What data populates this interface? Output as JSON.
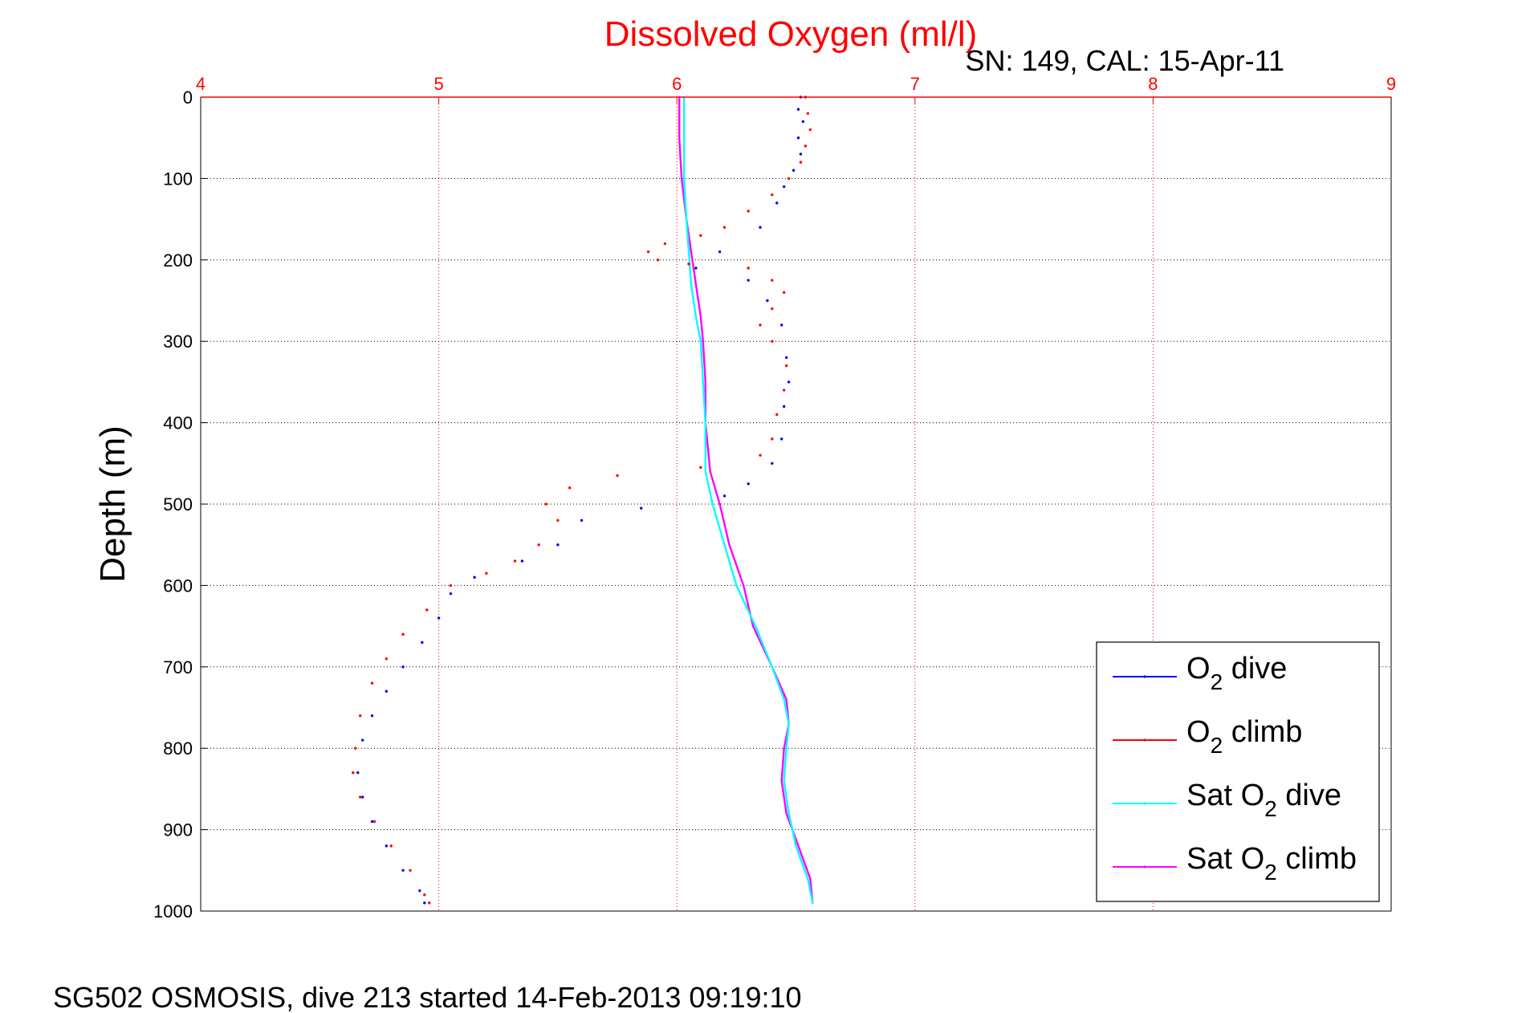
{
  "chart_data": {
    "type": "scatter",
    "title": "Dissolved Oxygen (ml/l)",
    "subtitle": "SN: 149, CAL: 15-Apr-11",
    "footer": "SG502 OSMOSIS, dive 213 started 14-Feb-2013 09:19:10",
    "xlabel": "",
    "ylabel": "Depth (m)",
    "xlim": [
      4,
      9
    ],
    "ylim": [
      0,
      1000
    ],
    "y_reversed": true,
    "x_axis_position": "top",
    "x_ticks": [
      "4",
      "5",
      "6",
      "7",
      "8",
      "9"
    ],
    "y_ticks": [
      "0",
      "100",
      "200",
      "300",
      "400",
      "500",
      "600",
      "700",
      "800",
      "900",
      "1000"
    ],
    "grid": true,
    "legend_position": "bottom-right",
    "colors": {
      "o2_dive": "#0000ff",
      "o2_climb": "#ff0000",
      "sat_dive": "#00ffff",
      "sat_climb": "#ff00ff",
      "title": "#ff0000",
      "grid_x": "#ff0000",
      "grid_y": "#000000"
    },
    "series": [
      {
        "name": "O2 dive",
        "legend_base": "O",
        "legend_sub": "2",
        "legend_suffix": " dive",
        "style": "dots",
        "points": [
          [
            6.52,
            0
          ],
          [
            6.51,
            15
          ],
          [
            6.53,
            30
          ],
          [
            6.51,
            50
          ],
          [
            6.52,
            70
          ],
          [
            6.49,
            90
          ],
          [
            6.45,
            110
          ],
          [
            6.42,
            130
          ],
          [
            6.35,
            160
          ],
          [
            6.18,
            190
          ],
          [
            6.08,
            210
          ],
          [
            6.3,
            225
          ],
          [
            6.38,
            250
          ],
          [
            6.44,
            280
          ],
          [
            6.46,
            320
          ],
          [
            6.47,
            350
          ],
          [
            6.45,
            380
          ],
          [
            6.44,
            420
          ],
          [
            6.4,
            450
          ],
          [
            6.3,
            475
          ],
          [
            6.2,
            490
          ],
          [
            5.85,
            505
          ],
          [
            5.6,
            520
          ],
          [
            5.5,
            550
          ],
          [
            5.35,
            570
          ],
          [
            5.15,
            590
          ],
          [
            5.05,
            610
          ],
          [
            5.0,
            640
          ],
          [
            4.93,
            670
          ],
          [
            4.85,
            700
          ],
          [
            4.78,
            730
          ],
          [
            4.72,
            760
          ],
          [
            4.68,
            790
          ],
          [
            4.66,
            830
          ],
          [
            4.68,
            860
          ],
          [
            4.72,
            890
          ],
          [
            4.78,
            920
          ],
          [
            4.85,
            950
          ],
          [
            4.92,
            975
          ],
          [
            4.94,
            990
          ]
        ]
      },
      {
        "name": "O2 climb",
        "legend_base": "O",
        "legend_sub": "2",
        "legend_suffix": " climb",
        "style": "dots",
        "points": [
          [
            6.54,
            0
          ],
          [
            6.55,
            20
          ],
          [
            6.56,
            40
          ],
          [
            6.54,
            60
          ],
          [
            6.52,
            80
          ],
          [
            6.47,
            100
          ],
          [
            6.4,
            120
          ],
          [
            6.3,
            140
          ],
          [
            6.2,
            160
          ],
          [
            6.1,
            170
          ],
          [
            5.95,
            180
          ],
          [
            5.88,
            190
          ],
          [
            5.92,
            200
          ],
          [
            6.05,
            205
          ],
          [
            6.3,
            210
          ],
          [
            6.4,
            225
          ],
          [
            6.45,
            240
          ],
          [
            6.4,
            260
          ],
          [
            6.35,
            280
          ],
          [
            6.4,
            300
          ],
          [
            6.46,
            330
          ],
          [
            6.45,
            360
          ],
          [
            6.42,
            390
          ],
          [
            6.4,
            420
          ],
          [
            6.35,
            440
          ],
          [
            6.1,
            455
          ],
          [
            5.75,
            465
          ],
          [
            5.55,
            480
          ],
          [
            5.45,
            500
          ],
          [
            5.5,
            520
          ],
          [
            5.42,
            550
          ],
          [
            5.32,
            570
          ],
          [
            5.2,
            585
          ],
          [
            5.05,
            600
          ],
          [
            4.95,
            630
          ],
          [
            4.85,
            660
          ],
          [
            4.78,
            690
          ],
          [
            4.72,
            720
          ],
          [
            4.67,
            760
          ],
          [
            4.65,
            800
          ],
          [
            4.64,
            830
          ],
          [
            4.67,
            860
          ],
          [
            4.73,
            890
          ],
          [
            4.8,
            920
          ],
          [
            4.88,
            950
          ],
          [
            4.94,
            980
          ],
          [
            4.96,
            990
          ]
        ]
      },
      {
        "name": "Sat O2 dive",
        "legend_base": "Sat O",
        "legend_sub": "2",
        "legend_suffix": " dive",
        "style": "line",
        "points": [
          [
            6.03,
            0
          ],
          [
            6.03,
            50
          ],
          [
            6.03,
            100
          ],
          [
            6.04,
            150
          ],
          [
            6.05,
            190
          ],
          [
            6.06,
            230
          ],
          [
            6.08,
            270
          ],
          [
            6.1,
            300
          ],
          [
            6.11,
            350
          ],
          [
            6.12,
            400
          ],
          [
            6.12,
            460
          ],
          [
            6.15,
            500
          ],
          [
            6.2,
            550
          ],
          [
            6.25,
            600
          ],
          [
            6.33,
            650
          ],
          [
            6.4,
            700
          ],
          [
            6.45,
            740
          ],
          [
            6.47,
            770
          ],
          [
            6.46,
            800
          ],
          [
            6.45,
            840
          ],
          [
            6.47,
            880
          ],
          [
            6.5,
            920
          ],
          [
            6.55,
            960
          ],
          [
            6.57,
            990
          ]
        ]
      },
      {
        "name": "Sat O2 climb",
        "legend_base": "Sat O",
        "legend_sub": "2",
        "legend_suffix": " climb",
        "style": "line",
        "points": [
          [
            6.01,
            0
          ],
          [
            6.01,
            50
          ],
          [
            6.02,
            100
          ],
          [
            6.04,
            150
          ],
          [
            6.06,
            190
          ],
          [
            6.08,
            230
          ],
          [
            6.1,
            270
          ],
          [
            6.11,
            300
          ],
          [
            6.12,
            350
          ],
          [
            6.12,
            400
          ],
          [
            6.14,
            460
          ],
          [
            6.18,
            500
          ],
          [
            6.22,
            550
          ],
          [
            6.28,
            600
          ],
          [
            6.32,
            650
          ],
          [
            6.4,
            700
          ],
          [
            6.46,
            740
          ],
          [
            6.47,
            770
          ],
          [
            6.45,
            800
          ],
          [
            6.44,
            840
          ],
          [
            6.46,
            880
          ],
          [
            6.51,
            920
          ],
          [
            6.56,
            960
          ],
          [
            6.57,
            990
          ]
        ]
      }
    ]
  }
}
